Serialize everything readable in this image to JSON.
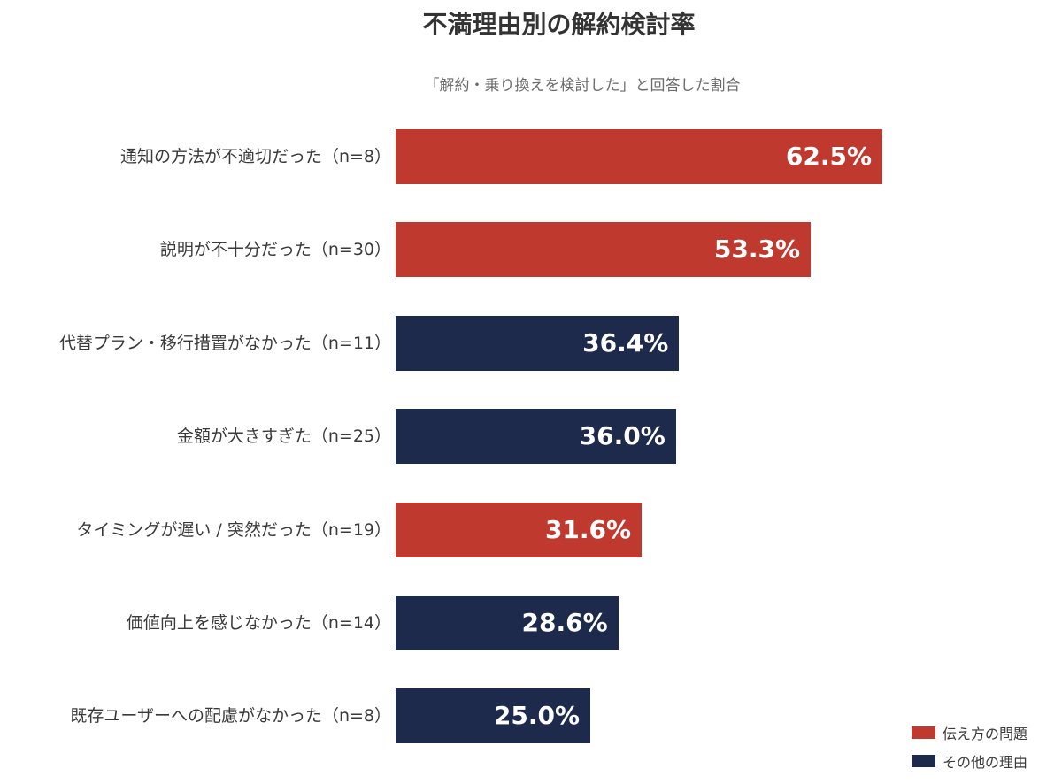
{
  "colors": {
    "communication": "#c0392f",
    "other": "#1d2a4c"
  },
  "chart_data": {
    "type": "bar",
    "orientation": "horizontal",
    "title": "不満理由別の解約検討率",
    "subtitle": "「解約・乗り換えを検討した」と回答した割合",
    "xlabel": "",
    "ylabel": "",
    "xlim": [
      0,
      100
    ],
    "grid": false,
    "legend_position": "bottom-right",
    "categories": [
      "通知の方法が不適切だった（n=8）",
      "説明が不十分だった（n=30）",
      "代替プラン・移行措置がなかった（n=11）",
      "金額が大きすぎた（n=25）",
      "タイミングが遅い / 突然だった（n=19）",
      "価値向上を感じなかった（n=14）",
      "既存ユーザーへの配慮がなかった（n=8）"
    ],
    "values": [
      62.5,
      53.3,
      36.4,
      36.0,
      31.6,
      28.6,
      25.0
    ],
    "value_labels": [
      "62.5%",
      "53.3%",
      "36.4%",
      "36.0%",
      "31.6%",
      "28.6%",
      "25.0%"
    ],
    "groups": [
      "伝え方の問題",
      "伝え方の問題",
      "その他の理由",
      "その他の理由",
      "伝え方の問題",
      "その他の理由",
      "その他の理由"
    ],
    "legend": [
      {
        "name": "伝え方の問題",
        "color": "#c0392f"
      },
      {
        "name": "その他の理由",
        "color": "#1d2a4c"
      }
    ]
  },
  "bars": [
    {
      "label": "通知の方法が不適切だった（n=8）",
      "value": 62.5,
      "value_label": "62.5%",
      "group": "communication"
    },
    {
      "label": "説明が不十分だった（n=30）",
      "value": 53.3,
      "value_label": "53.3%",
      "group": "communication"
    },
    {
      "label": "代替プラン・移行措置がなかった（n=11）",
      "value": 36.4,
      "value_label": "36.4%",
      "group": "other"
    },
    {
      "label": "金額が大きすぎた（n=25）",
      "value": 36.0,
      "value_label": "36.0%",
      "group": "other"
    },
    {
      "label": "タイミングが遅い / 突然だった（n=19）",
      "value": 31.6,
      "value_label": "31.6%",
      "group": "communication"
    },
    {
      "label": "価値向上を感じなかった（n=14）",
      "value": 28.6,
      "value_label": "28.6%",
      "group": "other"
    },
    {
      "label": "既存ユーザーへの配慮がなかった（n=8）",
      "value": 25.0,
      "value_label": "25.0%",
      "group": "other"
    }
  ],
  "legend": {
    "items": [
      {
        "label": "伝え方の問題",
        "color": "#c0392f"
      },
      {
        "label": "その他の理由",
        "color": "#1d2a4c"
      }
    ]
  }
}
